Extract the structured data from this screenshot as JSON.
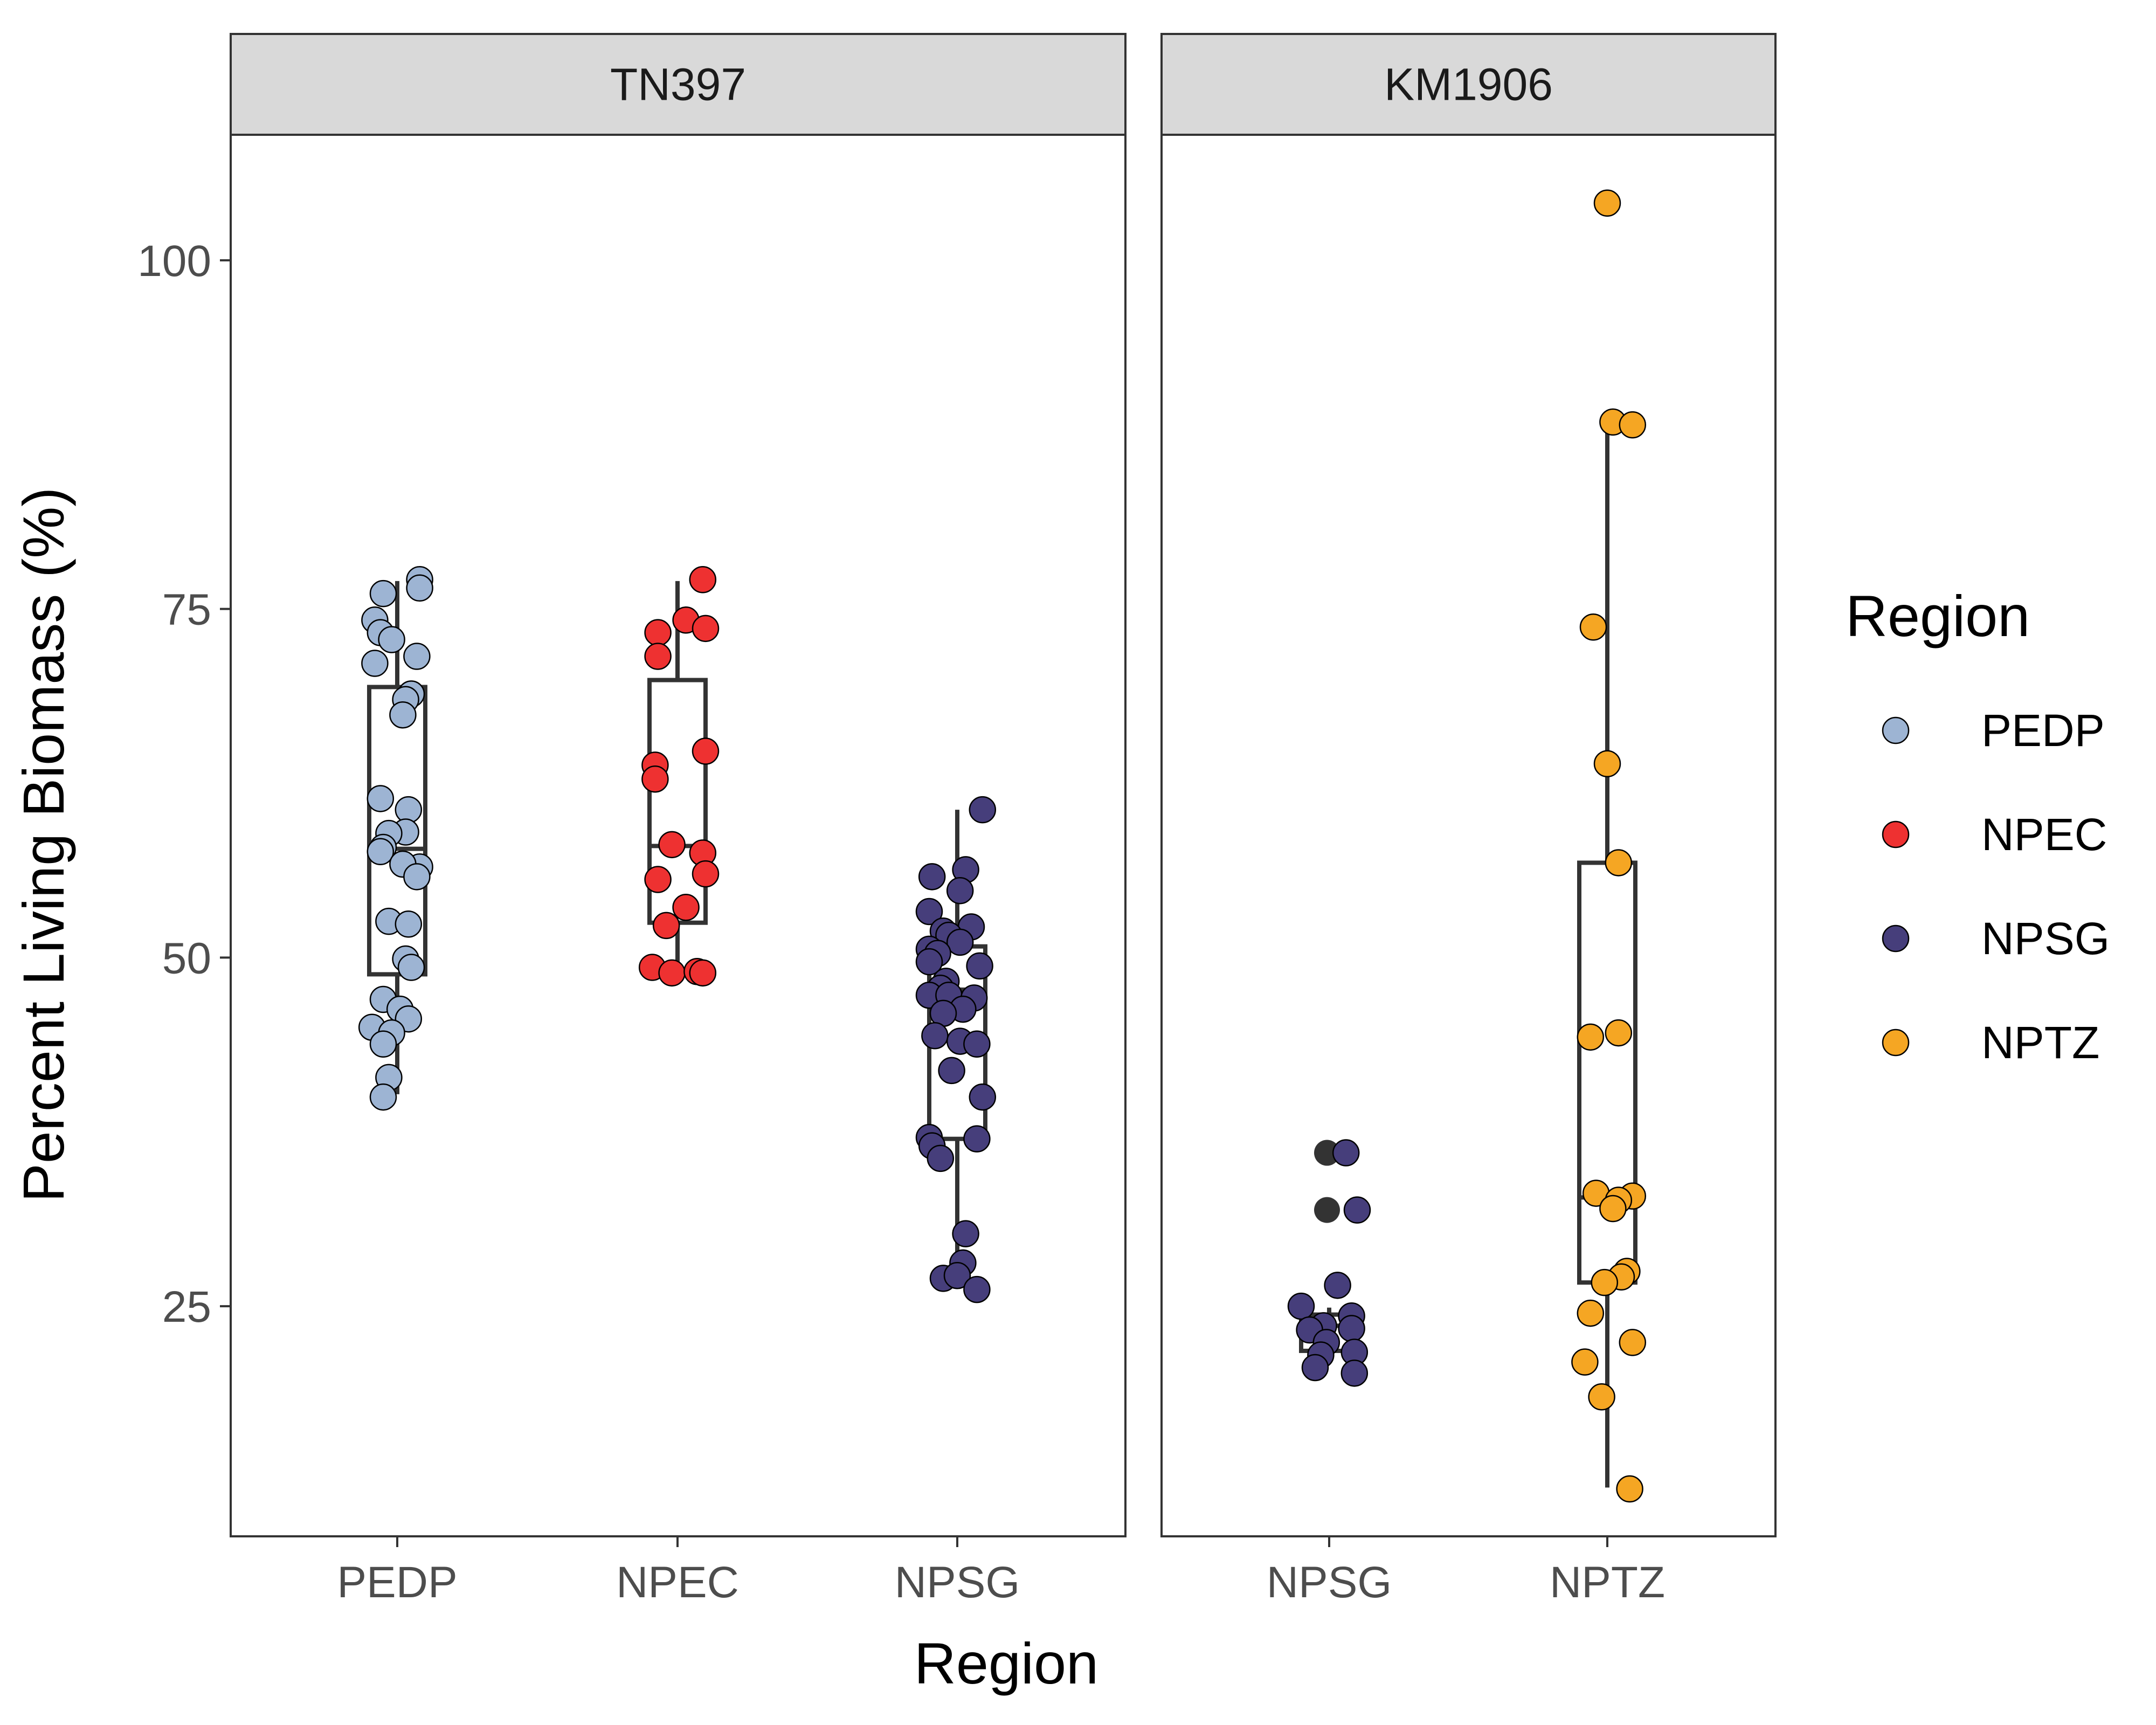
{
  "chart_data": {
    "type": "scatter",
    "subtype": "jittered points with boxplots, faceted",
    "xlabel": "Region",
    "ylabel": "Percent Living Biomass (%)",
    "yticks": [
      25,
      50,
      75,
      100
    ],
    "ylim": [
      8.5,
      109
    ],
    "legend": {
      "title": "Region",
      "placement": "right",
      "entries": [
        {
          "name": "PEDP",
          "color": "#9db4d3"
        },
        {
          "name": "NPEC",
          "color": "#ee3131"
        },
        {
          "name": "NPSG",
          "color": "#463e7b"
        },
        {
          "name": "NPTZ",
          "color": "#f5a623"
        }
      ]
    },
    "outlier_color": "#333333",
    "panels": [
      {
        "title": "TN397",
        "categories": [
          "PEDP",
          "NPEC",
          "NPSG"
        ],
        "groups": [
          {
            "name": "PEDP",
            "box": {
              "lower_whisker": 40.2,
              "q1": 48.8,
              "median": 57.8,
              "q3": 69.4,
              "upper_whisker": 77.0
            },
            "points": [
              {
                "dx": -0.05,
                "y": 76.1
              },
              {
                "dx": 0.08,
                "y": 77.1
              },
              {
                "dx": 0.08,
                "y": 76.5
              },
              {
                "dx": -0.08,
                "y": 74.2
              },
              {
                "dx": -0.06,
                "y": 73.3
              },
              {
                "dx": -0.02,
                "y": 72.8
              },
              {
                "dx": 0.07,
                "y": 71.6
              },
              {
                "dx": -0.08,
                "y": 71.1
              },
              {
                "dx": 0.05,
                "y": 68.9
              },
              {
                "dx": 0.03,
                "y": 68.5
              },
              {
                "dx": 0.02,
                "y": 67.4
              },
              {
                "dx": -0.06,
                "y": 61.4
              },
              {
                "dx": 0.04,
                "y": 60.6
              },
              {
                "dx": 0.03,
                "y": 59.0
              },
              {
                "dx": -0.03,
                "y": 58.9
              },
              {
                "dx": -0.05,
                "y": 57.9
              },
              {
                "dx": -0.06,
                "y": 57.6
              },
              {
                "dx": 0.08,
                "y": 56.5
              },
              {
                "dx": 0.02,
                "y": 56.7
              },
              {
                "dx": 0.07,
                "y": 55.8
              },
              {
                "dx": -0.03,
                "y": 52.6
              },
              {
                "dx": 0.04,
                "y": 52.4
              },
              {
                "dx": 0.03,
                "y": 49.9
              },
              {
                "dx": 0.05,
                "y": 49.3
              },
              {
                "dx": -0.05,
                "y": 47.0
              },
              {
                "dx": 0.01,
                "y": 46.3
              },
              {
                "dx": 0.04,
                "y": 45.6
              },
              {
                "dx": -0.09,
                "y": 45.0
              },
              {
                "dx": -0.02,
                "y": 44.6
              },
              {
                "dx": -0.05,
                "y": 43.8
              },
              {
                "dx": -0.03,
                "y": 41.4
              },
              {
                "dx": -0.05,
                "y": 40.0
              }
            ]
          },
          {
            "name": "NPEC",
            "box": {
              "lower_whisker": 49.2,
              "q1": 52.5,
              "median": 58.0,
              "q3": 69.9,
              "upper_whisker": 77.0
            },
            "points": [
              {
                "dx": 0.09,
                "y": 77.1
              },
              {
                "dx": 0.03,
                "y": 74.2
              },
              {
                "dx": 0.1,
                "y": 73.6
              },
              {
                "dx": -0.07,
                "y": 73.3
              },
              {
                "dx": -0.07,
                "y": 71.6
              },
              {
                "dx": 0.1,
                "y": 64.8
              },
              {
                "dx": -0.08,
                "y": 63.8
              },
              {
                "dx": -0.08,
                "y": 62.8
              },
              {
                "dx": -0.02,
                "y": 58.1
              },
              {
                "dx": 0.09,
                "y": 57.5
              },
              {
                "dx": 0.1,
                "y": 56.0
              },
              {
                "dx": -0.07,
                "y": 55.6
              },
              {
                "dx": 0.03,
                "y": 53.6
              },
              {
                "dx": -0.04,
                "y": 52.3
              },
              {
                "dx": -0.09,
                "y": 49.3
              },
              {
                "dx": -0.02,
                "y": 48.9
              },
              {
                "dx": 0.07,
                "y": 49.0
              },
              {
                "dx": 0.09,
                "y": 48.9
              }
            ]
          },
          {
            "name": "NPSG",
            "box": {
              "lower_whisker": 26.8,
              "q1": 37.0,
              "median": 47.7,
              "q3": 50.8,
              "upper_whisker": 60.6
            },
            "points": [
              {
                "dx": 0.09,
                "y": 60.6
              },
              {
                "dx": 0.03,
                "y": 56.3
              },
              {
                "dx": -0.09,
                "y": 55.8
              },
              {
                "dx": 0.01,
                "y": 54.8
              },
              {
                "dx": -0.1,
                "y": 53.3
              },
              {
                "dx": 0.05,
                "y": 52.2
              },
              {
                "dx": -0.05,
                "y": 51.9
              },
              {
                "dx": -0.03,
                "y": 51.6
              },
              {
                "dx": 0.01,
                "y": 51.1
              },
              {
                "dx": -0.1,
                "y": 50.6
              },
              {
                "dx": -0.07,
                "y": 50.3
              },
              {
                "dx": -0.1,
                "y": 49.7
              },
              {
                "dx": 0.08,
                "y": 49.4
              },
              {
                "dx": -0.04,
                "y": 48.3
              },
              {
                "dx": -0.06,
                "y": 47.8
              },
              {
                "dx": -0.1,
                "y": 47.3
              },
              {
                "dx": -0.03,
                "y": 47.3
              },
              {
                "dx": 0.06,
                "y": 47.1
              },
              {
                "dx": 0.02,
                "y": 46.3
              },
              {
                "dx": -0.05,
                "y": 46.0
              },
              {
                "dx": -0.08,
                "y": 44.4
              },
              {
                "dx": 0.01,
                "y": 44.0
              },
              {
                "dx": 0.07,
                "y": 43.8
              },
              {
                "dx": -0.02,
                "y": 41.9
              },
              {
                "dx": 0.09,
                "y": 40.0
              },
              {
                "dx": -0.1,
                "y": 37.1
              },
              {
                "dx": -0.09,
                "y": 36.5
              },
              {
                "dx": 0.07,
                "y": 37.0
              },
              {
                "dx": -0.06,
                "y": 35.6
              },
              {
                "dx": 0.03,
                "y": 30.2
              },
              {
                "dx": 0.02,
                "y": 28.1
              },
              {
                "dx": -0.05,
                "y": 27.0
              },
              {
                "dx": 0.0,
                "y": 27.2
              },
              {
                "dx": 0.07,
                "y": 26.2
              }
            ]
          }
        ]
      },
      {
        "title": "KM1906",
        "categories": [
          "NPSG",
          "NPTZ"
        ],
        "groups": [
          {
            "name": "NPSG",
            "box": {
              "lower_whisker": 21.8,
              "q1": 21.8,
              "median": 23.6,
              "q3": 24.4,
              "upper_whisker": 24.9
            },
            "outliers": [
              36.0,
              31.9
            ],
            "points": [
              {
                "dx": 0.06,
                "y": 36.0
              },
              {
                "dx": 0.1,
                "y": 31.9
              },
              {
                "dx": 0.03,
                "y": 26.5
              },
              {
                "dx": -0.1,
                "y": 25.0
              },
              {
                "dx": 0.08,
                "y": 24.3
              },
              {
                "dx": -0.02,
                "y": 23.6
              },
              {
                "dx": -0.07,
                "y": 23.3
              },
              {
                "dx": 0.08,
                "y": 23.4
              },
              {
                "dx": -0.01,
                "y": 22.4
              },
              {
                "dx": -0.03,
                "y": 21.5
              },
              {
                "dx": 0.09,
                "y": 21.7
              },
              {
                "dx": -0.05,
                "y": 20.6
              },
              {
                "dx": 0.09,
                "y": 20.2
              }
            ]
          },
          {
            "name": "NPTZ",
            "box": {
              "lower_whisker": 12.0,
              "q1": 26.7,
              "median": 32.8,
              "q3": 56.8,
              "upper_whisker": 87.8
            },
            "points": [
              {
                "dx": 0.0,
                "y": 104.1
              },
              {
                "dx": 0.02,
                "y": 88.4
              },
              {
                "dx": 0.09,
                "y": 88.2
              },
              {
                "dx": -0.05,
                "y": 73.7
              },
              {
                "dx": 0.0,
                "y": 63.9
              },
              {
                "dx": 0.04,
                "y": 56.8
              },
              {
                "dx": -0.06,
                "y": 44.3
              },
              {
                "dx": 0.04,
                "y": 44.6
              },
              {
                "dx": -0.04,
                "y": 33.1
              },
              {
                "dx": 0.09,
                "y": 32.9
              },
              {
                "dx": 0.04,
                "y": 32.6
              },
              {
                "dx": 0.02,
                "y": 32.0
              },
              {
                "dx": 0.07,
                "y": 27.5
              },
              {
                "dx": 0.05,
                "y": 27.1
              },
              {
                "dx": -0.01,
                "y": 26.7
              },
              {
                "dx": -0.06,
                "y": 24.5
              },
              {
                "dx": 0.09,
                "y": 22.4
              },
              {
                "dx": -0.08,
                "y": 21.0
              },
              {
                "dx": -0.02,
                "y": 18.5
              },
              {
                "dx": 0.08,
                "y": 11.9
              }
            ]
          }
        ]
      }
    ]
  }
}
